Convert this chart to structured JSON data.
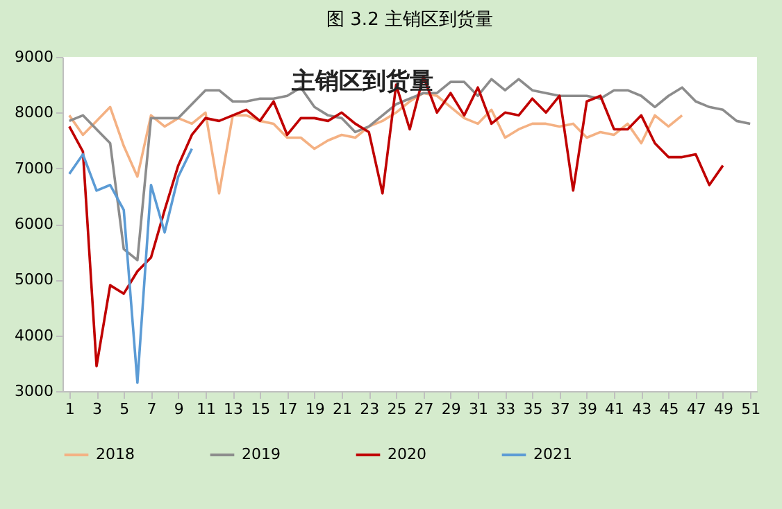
{
  "chart_data": {
    "type": "line",
    "title": "图 3.2  主销区到货量",
    "annotations": [
      "主销区到货量"
    ],
    "x": [
      1,
      2,
      3,
      4,
      5,
      6,
      7,
      8,
      9,
      10,
      11,
      12,
      13,
      14,
      15,
      16,
      17,
      18,
      19,
      20,
      21,
      22,
      23,
      24,
      25,
      26,
      27,
      28,
      29,
      30,
      31,
      32,
      33,
      34,
      35,
      36,
      37,
      38,
      39,
      40,
      41,
      42,
      43,
      44,
      45,
      46,
      47,
      48,
      49,
      50,
      51
    ],
    "xlim": [
      0.5,
      51.5
    ],
    "xticks": [
      1,
      3,
      5,
      7,
      9,
      11,
      13,
      15,
      17,
      19,
      21,
      23,
      25,
      27,
      29,
      31,
      33,
      35,
      37,
      39,
      41,
      43,
      45,
      47,
      49,
      51
    ],
    "ylim": [
      3000,
      9000
    ],
    "yticks": [
      3000,
      4000,
      5000,
      6000,
      7000,
      8000,
      9000
    ],
    "grid": false,
    "legend": "bottom",
    "marker": "none",
    "line_style": "solid",
    "series": [
      {
        "name": "2018",
        "color": "#f4b183",
        "values": [
          7950,
          7600,
          7850,
          8100,
          7400,
          6850,
          7950,
          7750,
          7900,
          7800,
          8000,
          6550,
          7950,
          7950,
          7850,
          7800,
          7550,
          7550,
          7350,
          7500,
          7600,
          7550,
          7750,
          7850,
          8000,
          8200,
          8350,
          8300,
          8100,
          7900,
          7800,
          8050,
          7550,
          7700,
          7800,
          7800,
          7750,
          7800,
          7550,
          7650,
          7600,
          7800,
          7450,
          7950,
          7750,
          7950,
          null,
          null,
          null,
          null,
          null
        ]
      },
      {
        "name": "2019",
        "color": "#8c8c8c",
        "values": [
          7850,
          7950,
          7700,
          7450,
          5550,
          5350,
          7900,
          7900,
          7900,
          8150,
          8400,
          8400,
          8200,
          8200,
          8250,
          8250,
          8300,
          8450,
          8100,
          7950,
          7900,
          7650,
          7750,
          7950,
          8150,
          8250,
          8350,
          8350,
          8550,
          8550,
          8300,
          8600,
          8400,
          8600,
          8400,
          8350,
          8300,
          8300,
          8300,
          8250,
          8400,
          8400,
          8300,
          8100,
          8300,
          8450,
          8200,
          8100,
          8050,
          7850,
          7800
        ]
      },
      {
        "name": "2020",
        "color": "#c00000",
        "values": [
          7750,
          7300,
          3450,
          4900,
          4750,
          5150,
          5400,
          6250,
          7050,
          7600,
          7900,
          7850,
          7950,
          8050,
          7850,
          8200,
          7600,
          7900,
          7900,
          7850,
          8000,
          7800,
          7650,
          6550,
          8500,
          7700,
          8650,
          8000,
          8350,
          7950,
          8450,
          7800,
          8000,
          7950,
          8250,
          8000,
          8300,
          6600,
          8200,
          8300,
          7700,
          7700,
          7950,
          7450,
          7200,
          7200,
          7250,
          6700,
          7050,
          null,
          null
        ]
      },
      {
        "name": "2021",
        "color": "#5b9bd5",
        "values": [
          6900,
          7250,
          6600,
          6700,
          6250,
          3150,
          6700,
          5850,
          6850,
          7350,
          null,
          null,
          null,
          null,
          null,
          null,
          null,
          null,
          null,
          null,
          null,
          null,
          null,
          null,
          null,
          null,
          null,
          null,
          null,
          null,
          null,
          null,
          null,
          null,
          null,
          null,
          null,
          null,
          null,
          null,
          null,
          null,
          null,
          null,
          null,
          null,
          null,
          null,
          null,
          null,
          null
        ]
      }
    ]
  }
}
